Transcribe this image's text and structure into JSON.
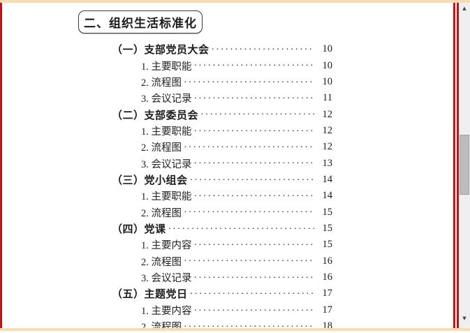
{
  "page": {
    "section_title": "二、组织生活标准化"
  },
  "toc": {
    "items": [
      {
        "level": 1,
        "label": "（一）支部党员大会",
        "page": "10"
      },
      {
        "level": 2,
        "label": "1. 主要职能",
        "page": "10"
      },
      {
        "level": 2,
        "label": "2. 流程图",
        "page": "10"
      },
      {
        "level": 2,
        "label": "3. 会议记录",
        "page": "11"
      },
      {
        "level": 1,
        "label": "（二）支部委员会",
        "page": "12"
      },
      {
        "level": 2,
        "label": "1. 主要职能",
        "page": "12"
      },
      {
        "level": 2,
        "label": "2. 流程图",
        "page": "12"
      },
      {
        "level": 2,
        "label": "3. 会议记录",
        "page": "13"
      },
      {
        "level": 1,
        "label": "（三）党小组会",
        "page": "14"
      },
      {
        "level": 2,
        "label": "1. 主要职能",
        "page": "14"
      },
      {
        "level": 2,
        "label": "2. 流程图",
        "page": "15"
      },
      {
        "level": 1,
        "label": "（四）党课",
        "page": "15"
      },
      {
        "level": 2,
        "label": "1. 主要内容",
        "page": "15"
      },
      {
        "level": 2,
        "label": "2. 流程图",
        "page": "16"
      },
      {
        "level": 2,
        "label": "3. 会议记录",
        "page": "16"
      },
      {
        "level": 1,
        "label": "（五）主题党日",
        "page": "17"
      },
      {
        "level": 2,
        "label": "1. 主要内容",
        "page": "17"
      },
      {
        "level": 2,
        "label": "2. 流程图",
        "page": "18"
      }
    ]
  },
  "icons": {
    "scroll_up": "▲",
    "scroll_down": "▼"
  },
  "colors": {
    "frame_red": "#cb0e0e",
    "frame_tan": "#fadcb0",
    "scrollbar_track": "#f0efef",
    "scrollbar_thumb": "#bcbcbc",
    "text": "#1c1c1c"
  }
}
